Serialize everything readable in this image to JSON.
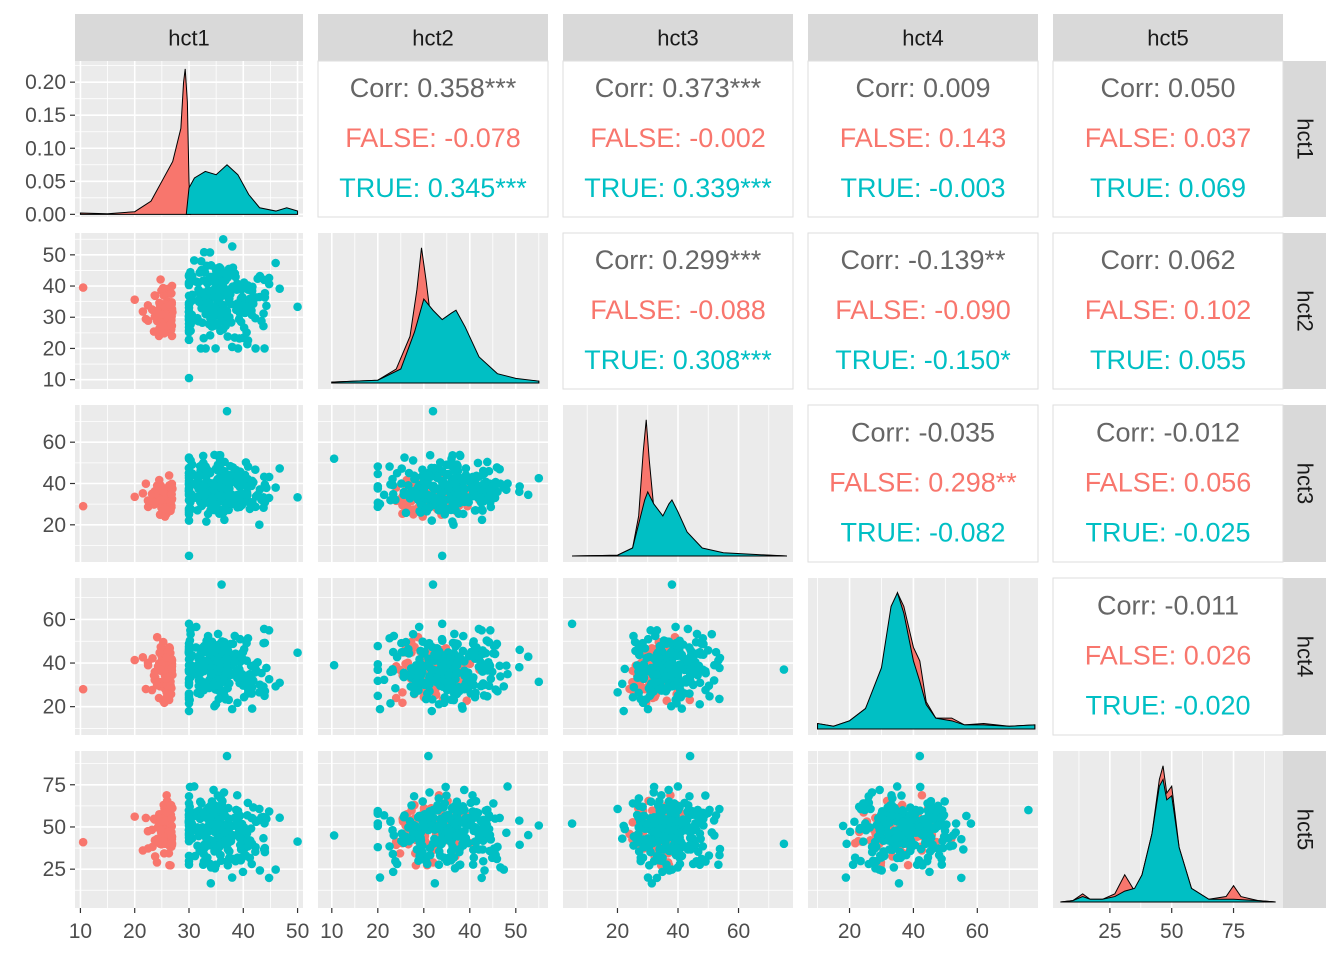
{
  "chart_data": {
    "type": "scatter",
    "variables": [
      "hct1",
      "hct2",
      "hct3",
      "hct4",
      "hct5"
    ],
    "groups": [
      "FALSE",
      "TRUE"
    ],
    "colors": {
      "FALSE": "#F8766D",
      "TRUE": "#00BFC4",
      "corr_overall": "#666666",
      "panel_bg": "#EBEBEB",
      "strip_bg": "#D9D9D9"
    },
    "axes": {
      "hct1": {
        "range": [
          9,
          51
        ],
        "ticks": [
          10,
          20,
          30,
          40,
          50
        ]
      },
      "hct2": {
        "range": [
          7,
          57
        ],
        "ticks": [
          10,
          20,
          30,
          40,
          50
        ]
      },
      "hct3": {
        "range": [
          2,
          78
        ],
        "ticks": [
          20,
          40,
          60
        ]
      },
      "hct4": {
        "range": [
          7,
          79
        ],
        "ticks": [
          20,
          40,
          60
        ]
      },
      "hct5": {
        "range": [
          2,
          95
        ],
        "ticks": [
          25,
          50,
          75
        ]
      }
    },
    "density_axis": {
      "range": [
        -0.004,
        0.232
      ],
      "ticks": [
        "0.00",
        "0.05",
        "0.10",
        "0.15",
        "0.20"
      ]
    },
    "correlations": [
      {
        "row": "hct1",
        "col": "hct2",
        "corr": "Corr: 0.358***",
        "false": "FALSE: -0.078",
        "true": "TRUE: 0.345***"
      },
      {
        "row": "hct1",
        "col": "hct3",
        "corr": "Corr: 0.373***",
        "false": "FALSE: -0.002",
        "true": "TRUE: 0.339***"
      },
      {
        "row": "hct1",
        "col": "hct4",
        "corr": "Corr: 0.009",
        "false": "FALSE: 0.143",
        "true": "TRUE: -0.003"
      },
      {
        "row": "hct1",
        "col": "hct5",
        "corr": "Corr: 0.050",
        "false": "FALSE: 0.037",
        "true": "TRUE: 0.069"
      },
      {
        "row": "hct2",
        "col": "hct3",
        "corr": "Corr: 0.299***",
        "false": "FALSE: -0.088",
        "true": "TRUE: 0.308***"
      },
      {
        "row": "hct2",
        "col": "hct4",
        "corr": "Corr: -0.139**",
        "false": "FALSE: -0.090",
        "true": "TRUE: -0.150*"
      },
      {
        "row": "hct2",
        "col": "hct5",
        "corr": "Corr: 0.062",
        "false": "FALSE: 0.102",
        "true": "TRUE: 0.055"
      },
      {
        "row": "hct3",
        "col": "hct4",
        "corr": "Corr: -0.035",
        "false": "FALSE: 0.298**",
        "true": "TRUE: -0.082"
      },
      {
        "row": "hct3",
        "col": "hct5",
        "corr": "Corr: -0.012",
        "false": "FALSE: 0.056",
        "true": "TRUE: -0.025"
      },
      {
        "row": "hct4",
        "col": "hct5",
        "corr": "Corr: -0.011",
        "false": "FALSE: 0.026",
        "true": "TRUE: -0.020"
      }
    ],
    "densities": {
      "hct1": {
        "FALSE": [
          [
            10,
            0.002
          ],
          [
            15,
            0.001
          ],
          [
            20,
            0.004
          ],
          [
            23,
            0.02
          ],
          [
            25,
            0.05
          ],
          [
            27,
            0.08
          ],
          [
            28.5,
            0.13
          ],
          [
            29,
            0.2
          ],
          [
            29.3,
            0.22
          ],
          [
            29.7,
            0.17
          ],
          [
            30,
            0.05
          ],
          [
            30.3,
            0.0
          ]
        ],
        "TRUE": [
          [
            29.5,
            0.0
          ],
          [
            30,
            0.04
          ],
          [
            31,
            0.055
          ],
          [
            33,
            0.065
          ],
          [
            35,
            0.06
          ],
          [
            37,
            0.075
          ],
          [
            39,
            0.06
          ],
          [
            41,
            0.03
          ],
          [
            43,
            0.01
          ],
          [
            46,
            0.005
          ],
          [
            48,
            0.01
          ],
          [
            50,
            0.005
          ]
        ]
      },
      "hct2": {
        "FALSE": [
          [
            10,
            0.001
          ],
          [
            20,
            0.003
          ],
          [
            24,
            0.015
          ],
          [
            27,
            0.05
          ],
          [
            28.5,
            0.1
          ],
          [
            29.5,
            0.145
          ],
          [
            30.5,
            0.11
          ],
          [
            32,
            0.05
          ],
          [
            34,
            0.03
          ],
          [
            37,
            0.02
          ],
          [
            42,
            0.01
          ],
          [
            47,
            0.005
          ],
          [
            55,
            0.002
          ]
        ],
        "TRUE": [
          [
            10,
            0.001
          ],
          [
            20,
            0.003
          ],
          [
            25,
            0.015
          ],
          [
            28,
            0.055
          ],
          [
            30,
            0.09
          ],
          [
            32,
            0.078
          ],
          [
            34,
            0.068
          ],
          [
            36,
            0.075
          ],
          [
            37,
            0.078
          ],
          [
            39,
            0.06
          ],
          [
            42,
            0.028
          ],
          [
            46,
            0.01
          ],
          [
            50,
            0.005
          ],
          [
            55,
            0.002
          ]
        ]
      },
      "hct3": {
        "FALSE": [
          [
            5,
            0.0
          ],
          [
            20,
            0.001
          ],
          [
            25,
            0.01
          ],
          [
            27,
            0.05
          ],
          [
            28.5,
            0.13
          ],
          [
            29.5,
            0.17
          ],
          [
            30.5,
            0.12
          ],
          [
            32,
            0.06
          ],
          [
            35,
            0.04
          ],
          [
            38,
            0.03
          ],
          [
            42,
            0.015
          ],
          [
            50,
            0.005
          ],
          [
            60,
            0.002
          ],
          [
            76,
            0.0
          ]
        ],
        "TRUE": [
          [
            5,
            0.0
          ],
          [
            20,
            0.001
          ],
          [
            25,
            0.01
          ],
          [
            27,
            0.04
          ],
          [
            29,
            0.07
          ],
          [
            30,
            0.08
          ],
          [
            32,
            0.065
          ],
          [
            35,
            0.05
          ],
          [
            37,
            0.065
          ],
          [
            38,
            0.07
          ],
          [
            40,
            0.055
          ],
          [
            43,
            0.03
          ],
          [
            48,
            0.01
          ],
          [
            55,
            0.004
          ],
          [
            65,
            0.002
          ],
          [
            76,
            0.0
          ]
        ]
      },
      "hct4": {
        "FALSE": [
          [
            10,
            0.004
          ],
          [
            15,
            0.002
          ],
          [
            20,
            0.006
          ],
          [
            25,
            0.015
          ],
          [
            30,
            0.04
          ],
          [
            33,
            0.08
          ],
          [
            35,
            0.1
          ],
          [
            37,
            0.09
          ],
          [
            40,
            0.06
          ],
          [
            42,
            0.05
          ],
          [
            44,
            0.02
          ],
          [
            47,
            0.008
          ],
          [
            52,
            0.008
          ],
          [
            56,
            0.003
          ],
          [
            62,
            0.004
          ],
          [
            70,
            0.002
          ],
          [
            78,
            0.003
          ]
        ],
        "TRUE": [
          [
            10,
            0.004
          ],
          [
            15,
            0.002
          ],
          [
            20,
            0.006
          ],
          [
            25,
            0.015
          ],
          [
            30,
            0.045
          ],
          [
            33,
            0.09
          ],
          [
            35,
            0.1
          ],
          [
            37,
            0.085
          ],
          [
            40,
            0.05
          ],
          [
            42,
            0.035
          ],
          [
            44,
            0.018
          ],
          [
            47,
            0.008
          ],
          [
            52,
            0.006
          ],
          [
            56,
            0.003
          ],
          [
            62,
            0.003
          ],
          [
            70,
            0.002
          ],
          [
            78,
            0.003
          ]
        ]
      },
      "hct5": {
        "FALSE": [
          [
            5,
            0.0
          ],
          [
            10,
            0.001
          ],
          [
            14,
            0.006
          ],
          [
            17,
            0.002
          ],
          [
            22,
            0.002
          ],
          [
            27,
            0.006
          ],
          [
            31,
            0.02
          ],
          [
            35,
            0.008
          ],
          [
            38,
            0.02
          ],
          [
            42,
            0.05
          ],
          [
            45,
            0.09
          ],
          [
            46.5,
            0.1
          ],
          [
            48,
            0.08
          ],
          [
            50,
            0.085
          ],
          [
            53,
            0.04
          ],
          [
            58,
            0.01
          ],
          [
            65,
            0.002
          ],
          [
            72,
            0.004
          ],
          [
            75,
            0.012
          ],
          [
            78,
            0.004
          ],
          [
            85,
            0.001
          ],
          [
            92,
            0.0
          ]
        ],
        "TRUE": [
          [
            5,
            0.0
          ],
          [
            10,
            0.001
          ],
          [
            14,
            0.004
          ],
          [
            17,
            0.002
          ],
          [
            22,
            0.002
          ],
          [
            27,
            0.004
          ],
          [
            31,
            0.008
          ],
          [
            35,
            0.01
          ],
          [
            38,
            0.02
          ],
          [
            42,
            0.05
          ],
          [
            45,
            0.085
          ],
          [
            46.5,
            0.09
          ],
          [
            48,
            0.075
          ],
          [
            50,
            0.078
          ],
          [
            53,
            0.04
          ],
          [
            58,
            0.01
          ],
          [
            65,
            0.002
          ],
          [
            75,
            0.002
          ],
          [
            85,
            0.001
          ],
          [
            92,
            0.0
          ]
        ]
      }
    }
  }
}
